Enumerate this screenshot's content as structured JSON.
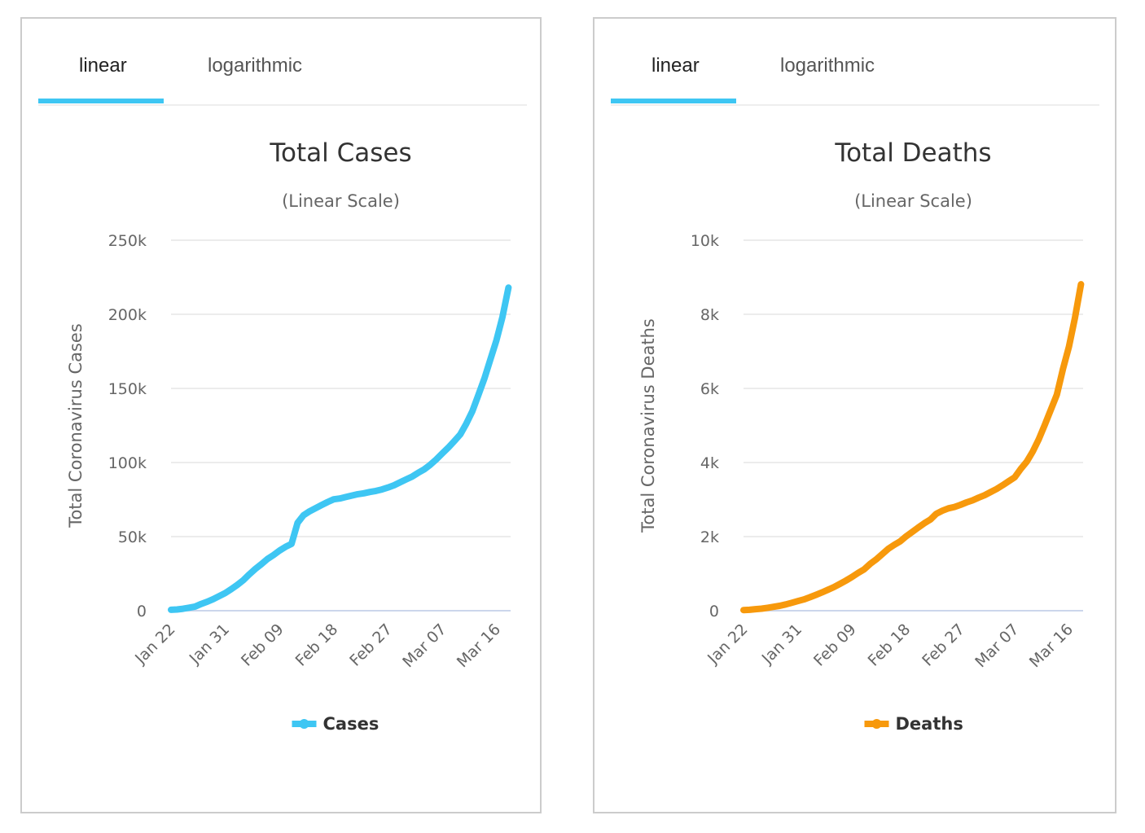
{
  "colors": {
    "accent": "#3ec6f3",
    "cases": "#3ec6f3",
    "deaths": "#f7990c",
    "grid": "#e6e6e6",
    "baseline": "#ccd6eb"
  },
  "panels": [
    {
      "tabs": [
        {
          "label": "linear",
          "active": true
        },
        {
          "label": "logarithmic",
          "active": false
        }
      ]
    },
    {
      "tabs": [
        {
          "label": "linear",
          "active": true
        },
        {
          "label": "logarithmic",
          "active": false
        }
      ]
    }
  ],
  "chart_data": [
    {
      "type": "line",
      "title": "Total Cases",
      "subtitle": "(Linear Scale)",
      "xlabel": "",
      "ylabel": "Total Coronavirus Cases",
      "ylim": [
        0,
        250000
      ],
      "yticks": [
        0,
        50000,
        100000,
        150000,
        200000,
        250000
      ],
      "ytick_labels": [
        "0",
        "50k",
        "100k",
        "150k",
        "200k",
        "250k"
      ],
      "xtick_labels": [
        "Jan 22",
        "Jan 31",
        "Feb 09",
        "Feb 18",
        "Feb 27",
        "Mar 07",
        "Mar 16"
      ],
      "xtick_indices": [
        0,
        9,
        18,
        27,
        36,
        45,
        54
      ],
      "grid": true,
      "legend": "bottom-center",
      "series": [
        {
          "name": "Cases",
          "color": "#3ec6f3",
          "values": [
            580,
            845,
            1317,
            2015,
            2800,
            4581,
            6058,
            7813,
            9823,
            11950,
            14553,
            17391,
            20630,
            24545,
            28266,
            31439,
            34876,
            37552,
            40553,
            43099,
            45134,
            59287,
            64438,
            67100,
            69197,
            71329,
            73332,
            75184,
            75700,
            76677,
            77673,
            78651,
            79205,
            80087,
            80828,
            81820,
            83112,
            84615,
            86604,
            88585,
            90443,
            93016,
            95314,
            98425,
            102050,
            106099,
            109991,
            114381,
            118948,
            126214,
            134576,
            145483,
            156653,
            169593,
            182490,
            198234,
            218000
          ]
        }
      ]
    },
    {
      "type": "line",
      "title": "Total Deaths",
      "subtitle": "(Linear Scale)",
      "xlabel": "",
      "ylabel": "Total Coronavirus Deaths",
      "ylim": [
        0,
        10000
      ],
      "yticks": [
        0,
        2000,
        4000,
        6000,
        8000,
        10000
      ],
      "ytick_labels": [
        "0",
        "2k",
        "4k",
        "6k",
        "8k",
        "10k"
      ],
      "xtick_labels": [
        "Jan 22",
        "Jan 31",
        "Feb 09",
        "Feb 18",
        "Feb 27",
        "Mar 07",
        "Mar 16"
      ],
      "xtick_indices": [
        0,
        9,
        18,
        27,
        36,
        45,
        54
      ],
      "grid": true,
      "legend": "bottom-center",
      "series": [
        {
          "name": "Deaths",
          "color": "#f7990c",
          "values": [
            17,
            25,
            41,
            56,
            80,
            106,
            132,
            170,
            213,
            259,
            304,
            362,
            426,
            492,
            565,
            638,
            724,
            813,
            910,
            1018,
            1115,
            1261,
            1383,
            1526,
            1669,
            1775,
            1873,
            2009,
            2126,
            2247,
            2360,
            2460,
            2618,
            2699,
            2763,
            2800,
            2858,
            2923,
            2977,
            3050,
            3117,
            3202,
            3285,
            3387,
            3494,
            3599,
            3827,
            4025,
            4296,
            4628,
            5020,
            5427,
            5833,
            6519,
            7126,
            7905,
            8810
          ]
        }
      ]
    }
  ]
}
